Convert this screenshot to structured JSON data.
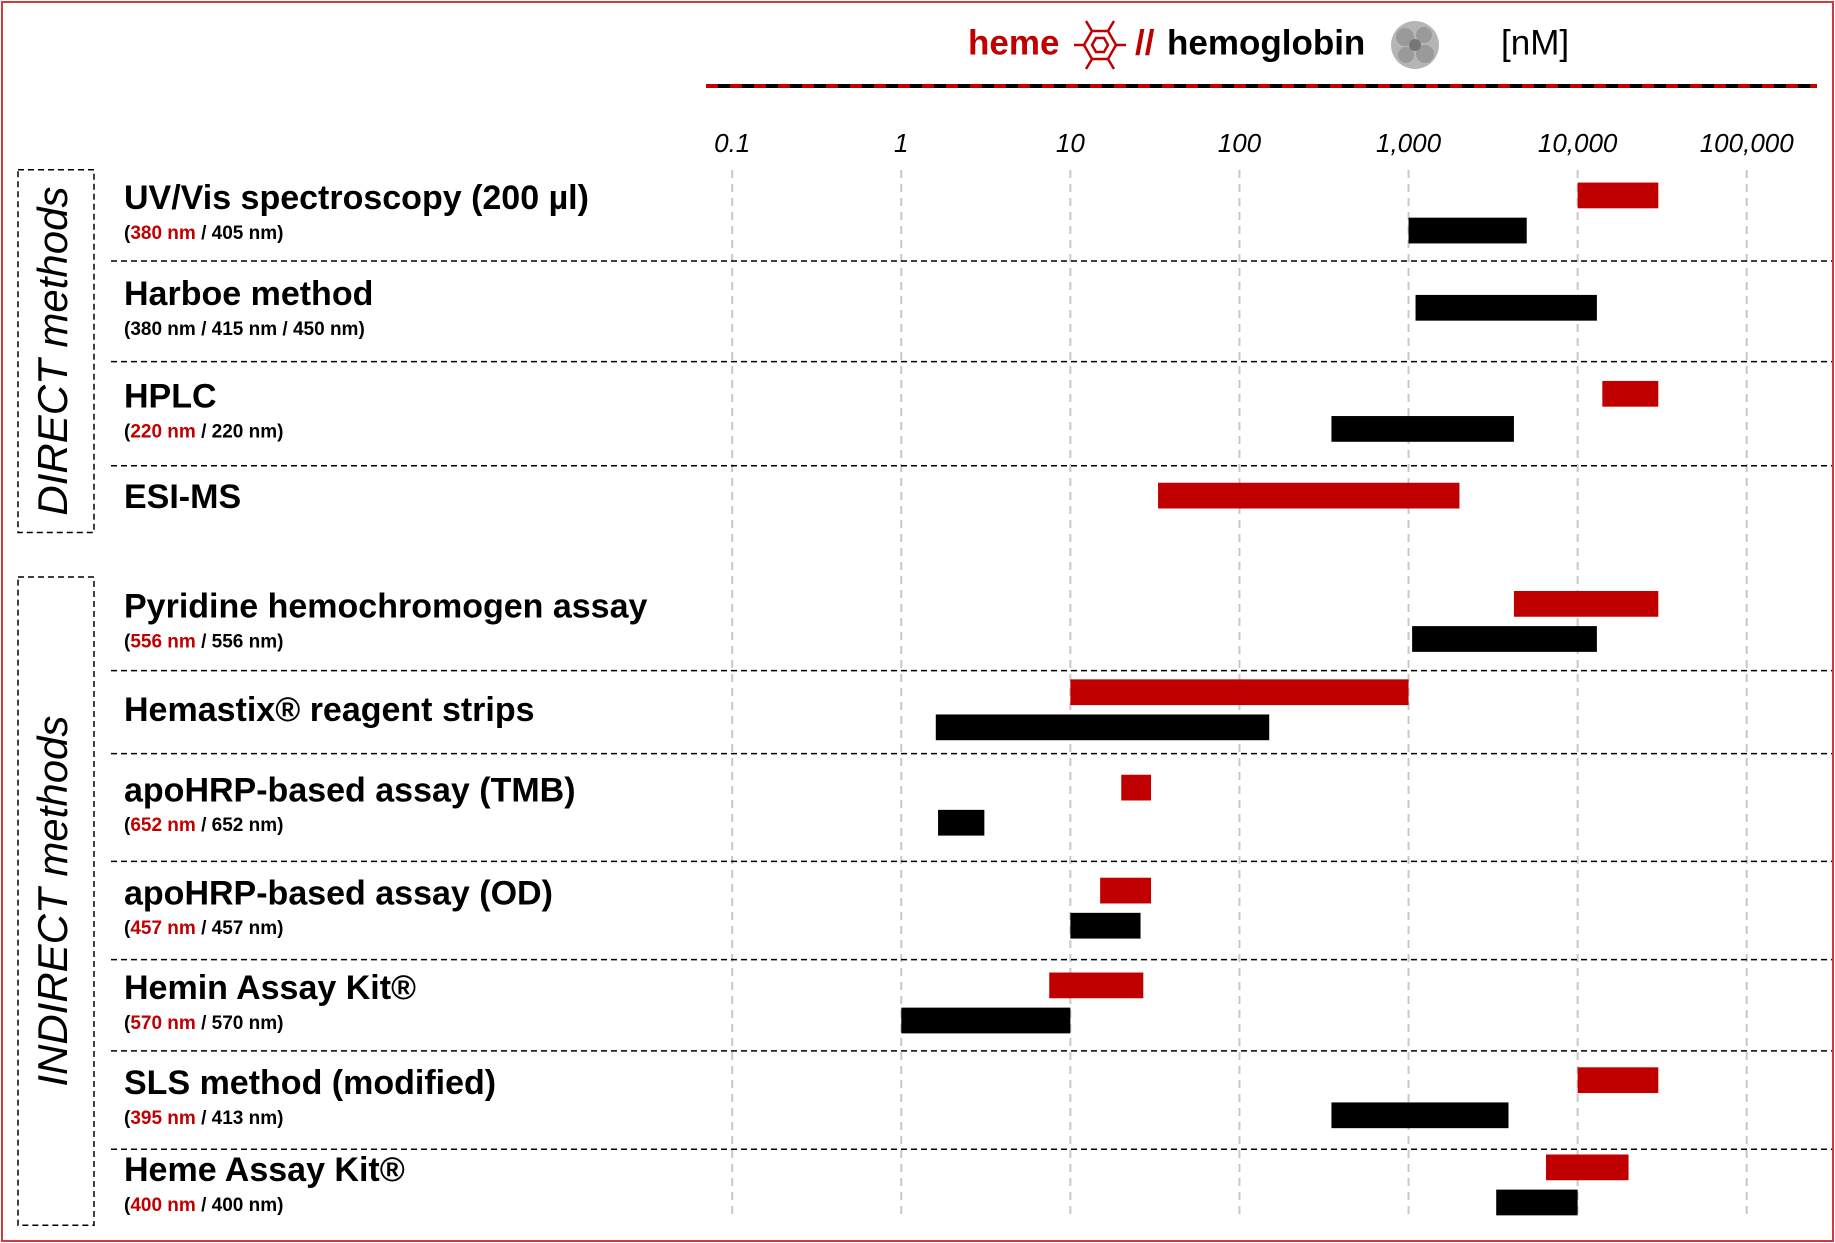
{
  "chart_data": {
    "type": "range-bar",
    "series_separator": "//",
    "unit_label": "[nM]",
    "categories": [
      "UV/Vis spectroscopy (200 µl)",
      "Harboe method",
      "HPLC",
      "ESI-MS",
      "Pyridine hemochromogen assay",
      "Hemastix® reagent strips",
      "apoHRP-based assay (TMB)",
      "apoHRP-based assay (OD)",
      "Hemin Assay Kit®",
      "SLS method (modified)",
      "Heme Assay Kit®"
    ],
    "sublabels": [
      [
        {
          "text": "("
        },
        {
          "text": "380 nm",
          "color": "#c00000"
        },
        {
          "text": " / 405 nm)"
        }
      ],
      [
        {
          "text": "(380 nm / 415 nm / 450 nm)"
        }
      ],
      [
        {
          "text": "("
        },
        {
          "text": "220 nm",
          "color": "#c00000"
        },
        {
          "text": " / 220 nm)"
        }
      ],
      null,
      [
        {
          "text": "("
        },
        {
          "text": "556 nm",
          "color": "#c00000"
        },
        {
          "text": " / 556 nm)"
        }
      ],
      null,
      [
        {
          "text": "("
        },
        {
          "text": "652 nm",
          "color": "#c00000"
        },
        {
          "text": " / 652 nm)"
        }
      ],
      [
        {
          "text": "("
        },
        {
          "text": "457 nm",
          "color": "#c00000"
        },
        {
          "text": " / 457 nm)"
        }
      ],
      [
        {
          "text": "("
        },
        {
          "text": "570 nm",
          "color": "#c00000"
        },
        {
          "text": " / 570 nm)"
        }
      ],
      [
        {
          "text": "("
        },
        {
          "text": "395 nm",
          "color": "#c00000"
        },
        {
          "text": " / 413 nm)"
        }
      ],
      [
        {
          "text": "("
        },
        {
          "text": "400 nm",
          "color": "#c00000"
        },
        {
          "text": " / 400 nm)"
        }
      ]
    ],
    "category_groups": [
      "DIRECT methods",
      "DIRECT methods",
      "DIRECT methods",
      "DIRECT methods",
      "INDIRECT methods",
      "INDIRECT methods",
      "INDIRECT methods",
      "INDIRECT methods",
      "INDIRECT methods",
      "INDIRECT methods",
      "INDIRECT methods"
    ],
    "series": [
      {
        "name": "heme",
        "color": "#c00000",
        "values": [
          [
            10000,
            30000
          ],
          null,
          [
            14000,
            30000
          ],
          [
            33,
            2000
          ],
          [
            4200,
            30000
          ],
          [
            10,
            1000
          ],
          [
            20,
            30
          ],
          [
            15,
            30
          ],
          [
            7.5,
            27
          ],
          [
            10000,
            30000
          ],
          [
            6500,
            20000
          ]
        ]
      },
      {
        "name": "hemoglobin",
        "color": "#000000",
        "values": [
          [
            1000,
            5000
          ],
          [
            1100,
            13000
          ],
          [
            350,
            4200
          ],
          null,
          [
            1050,
            13000
          ],
          [
            1.6,
            150
          ],
          [
            1.65,
            3.1
          ],
          [
            10,
            26
          ],
          [
            1,
            10
          ],
          [
            350,
            3900
          ],
          [
            3300,
            10000
          ]
        ]
      }
    ],
    "xscale": "log",
    "xlim": [
      0.07,
      250000
    ],
    "xticks": [
      0.1,
      1,
      10,
      100,
      {
        "value": 1000,
        "label": "1,000"
      },
      {
        "value": 10000,
        "label": "10,000"
      },
      {
        "value": 100000,
        "label": "100,000"
      }
    ],
    "grid": true
  }
}
